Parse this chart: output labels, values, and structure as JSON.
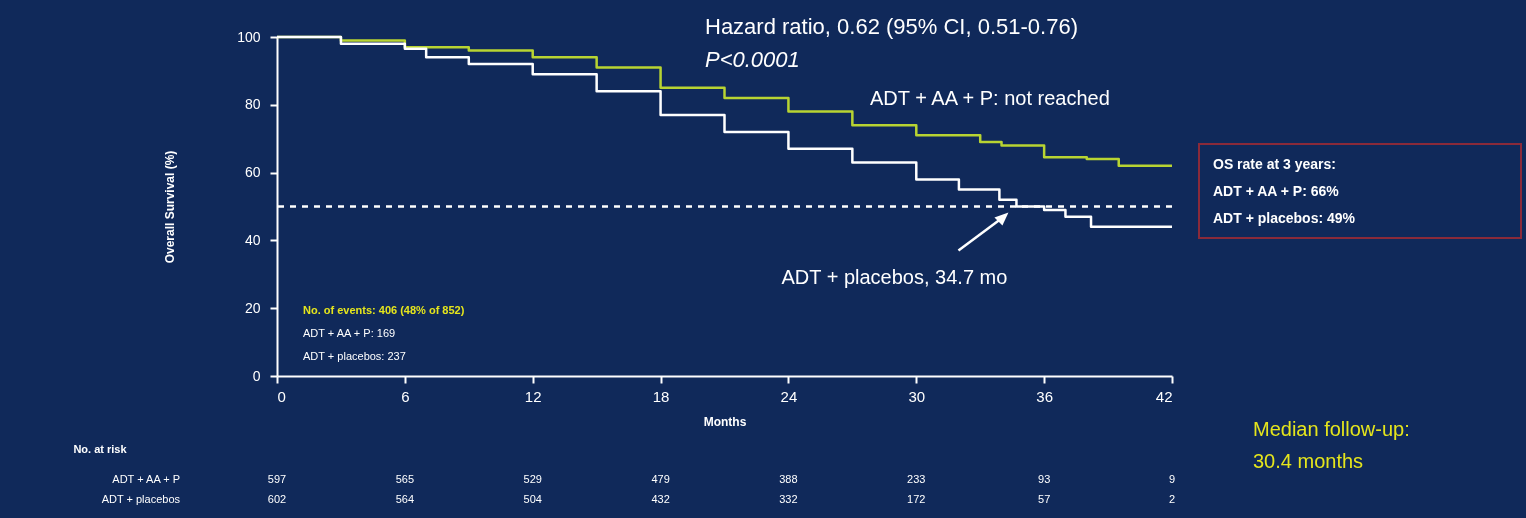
{
  "chart_data": {
    "type": "step",
    "xlabel": "Months",
    "ylabel": "Overall Survival (%)",
    "xlim": [
      0,
      42
    ],
    "xticks": [
      0,
      6,
      12,
      18,
      24,
      30,
      36,
      42
    ],
    "ylim": [
      0,
      100
    ],
    "yticks": [
      0,
      20,
      40,
      60,
      80,
      100
    ],
    "grid": false,
    "legend": false,
    "marker": "none",
    "series": [
      {
        "color": "#b8d432",
        "x": [
          0,
          3,
          6,
          9,
          12,
          15,
          18,
          21,
          24,
          27,
          30,
          33,
          34,
          36,
          38,
          39.5,
          42
        ],
        "values": [
          100,
          99,
          97,
          96,
          94,
          91,
          85,
          82,
          78,
          74,
          71,
          69,
          68,
          64.5,
          64,
          62,
          62
        ]
      },
      {
        "color": "#ffffff",
        "x": [
          0,
          3,
          6,
          7,
          9,
          12,
          15,
          18,
          21,
          24,
          27,
          30,
          32,
          33.9,
          34.7,
          36,
          37,
          38.2,
          42
        ],
        "values": [
          100,
          98,
          96.5,
          94,
          92,
          89,
          84,
          77,
          72,
          67,
          63,
          58,
          55,
          52,
          50,
          49,
          47,
          44,
          44
        ]
      }
    ],
    "ref_lines": [
      {
        "axis": "y",
        "value": 50,
        "color": "#ffffff",
        "line_style": "dashed"
      }
    ],
    "annotations": [
      "Hazard ratio, 0.62 (95% CI, 0.51-0.76)",
      "P<0.0001",
      "ADT + AA + P: not reached",
      {
        "text": "ADT + placebos, 34.7 mo",
        "x": 34.7,
        "y": 50
      },
      "OS rate at 3 years:",
      "ADT + AA + P:  66%",
      "ADT + placebos:  49%",
      "No. of events: 406 (48% of 852)",
      "ADT + AA + P: 169",
      "ADT + placebos: 237",
      "No. at risk",
      "ADT + AA + P",
      "ADT + placebos",
      "597",
      "565",
      "529",
      "479",
      "388",
      "233",
      "93",
      "9",
      "602",
      "564",
      "504",
      "432",
      "332",
      "172",
      "57",
      "2",
      "Median follow-up:",
      "30.4 months"
    ]
  }
}
